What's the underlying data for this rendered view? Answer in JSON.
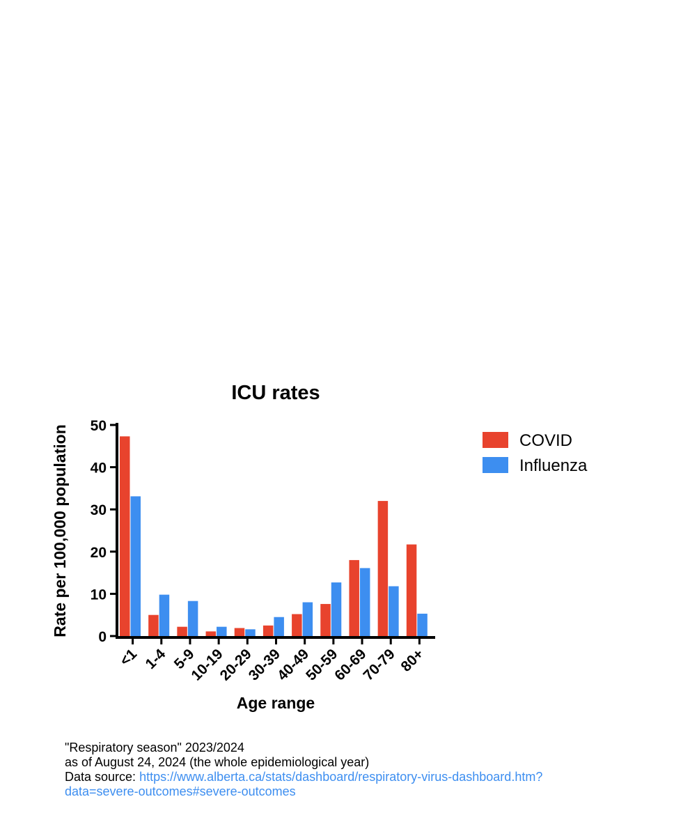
{
  "chart_data": {
    "type": "bar",
    "title": "ICU rates",
    "xlabel": "Age range",
    "ylabel": "Rate per 100,000 population",
    "categories": [
      "<1",
      "1-4",
      "5-9",
      "10-19",
      "20-29",
      "30-39",
      "40-49",
      "50-59",
      "60-69",
      "70-79",
      "80+"
    ],
    "series": [
      {
        "name": "COVID",
        "color": "#e8432d",
        "values": [
          47.3,
          5.0,
          2.2,
          1.1,
          1.9,
          2.5,
          5.2,
          7.6,
          18.0,
          32.0,
          21.7
        ]
      },
      {
        "name": "Influenza",
        "color": "#3d8ef0",
        "values": [
          33.1,
          9.8,
          8.3,
          2.2,
          1.6,
          4.5,
          8.0,
          12.7,
          16.1,
          11.8,
          5.3
        ]
      }
    ],
    "ylim": [
      0,
      50
    ],
    "yticks": [
      0,
      10,
      20,
      30,
      40,
      50
    ],
    "legend": "right",
    "grid": false
  },
  "note": {
    "line1": "\"Respiratory season\" 2023/2024",
    "line2": "as of August 24, 2024 (the whole epidemiological year)",
    "source_label": "Data source: ",
    "source_url": "https://www.alberta.ca/stats/dashboard/respiratory-virus-dashboard.htm?data=severe-outcomes#severe-outcomes"
  }
}
